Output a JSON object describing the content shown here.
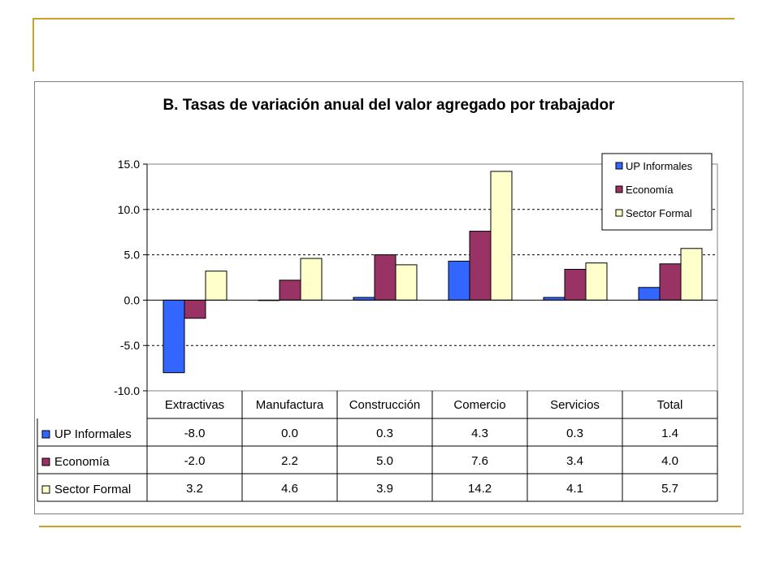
{
  "chart_data": {
    "type": "bar",
    "title": "B. Tasas de variación anual del valor agregado por trabajador",
    "categories": [
      "Extractivas",
      "Manufactura",
      "Construcción",
      "Comercio",
      "Servicios",
      "Total"
    ],
    "series": [
      {
        "name": "UP Informales",
        "values": [
          -8.0,
          0.0,
          0.3,
          4.3,
          0.3,
          1.4
        ],
        "color": "#3366ff"
      },
      {
        "name": "Economía",
        "values": [
          -2.0,
          2.2,
          5.0,
          7.6,
          3.4,
          4.0
        ],
        "color": "#993366"
      },
      {
        "name": "Sector Formal",
        "values": [
          3.2,
          4.6,
          3.9,
          14.2,
          4.1,
          5.7
        ],
        "color": "#ffffcc"
      }
    ],
    "table": [
      [
        "-8.0",
        "0.0",
        "0.3",
        "4.3",
        "0.3",
        "1.4"
      ],
      [
        "-2.0",
        "2.2",
        "5.0",
        "7.6",
        "3.4",
        "4.0"
      ],
      [
        "3.2",
        "4.6",
        "3.9",
        "14.2",
        "4.1",
        "5.7"
      ]
    ],
    "ylim": [
      -10,
      15
    ],
    "yticks": [
      "15.0",
      "10.0",
      "5.0",
      "0.0",
      "-5.0",
      "-10.0"
    ],
    "grid": true,
    "legend_position": "top-right",
    "plot_background": "#ffffff"
  }
}
